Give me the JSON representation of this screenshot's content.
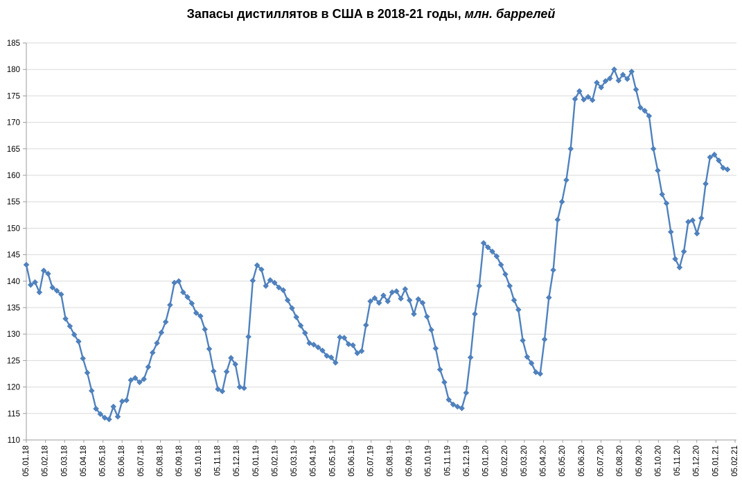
{
  "title": {
    "main": "Запасы дистиллятов в США в 2018-21 годы,",
    "suffix": " млн. баррелей"
  },
  "chart_data": {
    "type": "line",
    "title": "Запасы дистиллятов в США в 2018-21 годы, млн. баррелей",
    "xlabel": "",
    "ylabel": "",
    "x_unit": "week",
    "x_range": [
      "05.01.18",
      "05.02.21"
    ],
    "ylim": [
      110,
      185
    ],
    "ytick_step": 5,
    "grid": "horizontal",
    "legend": "none",
    "marker": "diamond",
    "line_color": "#4F81BD",
    "grid_color": "#D9D9D9",
    "axis_color": "#9B9B9B",
    "text_color": "#000000",
    "background": "#FFFFFF",
    "x_tick_labels": [
      "05.01.18",
      "05.02.18",
      "05.03.18",
      "05.04.18",
      "05.05.18",
      "05.06.18",
      "05.07.18",
      "05.08.18",
      "05.09.18",
      "05.10.18",
      "05.11.18",
      "05.12.18",
      "05.01.19",
      "05.02.19",
      "05.03.19",
      "05.04.19",
      "05.05.19",
      "05.06.19",
      "05.07.19",
      "05.08.19",
      "05.09.19",
      "05.10.19",
      "05.11.19",
      "05.12.19",
      "05.01.20",
      "05.02.20",
      "05.03.20",
      "05.04.20",
      "05.05.20",
      "05.06.20",
      "05.07.20",
      "05.08.20",
      "05.09.20",
      "05.10.20",
      "05.11.20",
      "05.12.20",
      "05.01.21",
      "05.02.21"
    ],
    "series": [
      {
        "name": "Запасы дистиллятов в США, млн. баррелей",
        "values": [
          143.1,
          139.3,
          139.8,
          137.9,
          142.0,
          141.4,
          138.8,
          138.2,
          137.5,
          132.9,
          131.5,
          129.9,
          128.6,
          125.4,
          122.7,
          119.3,
          115.9,
          114.9,
          114.2,
          113.9,
          116.3,
          114.4,
          117.3,
          117.5,
          121.3,
          121.7,
          120.9,
          121.5,
          123.8,
          126.5,
          128.3,
          130.3,
          132.3,
          135.5,
          139.7,
          140.0,
          137.9,
          137.0,
          135.8,
          134.0,
          133.4,
          130.9,
          127.2,
          123.0,
          119.6,
          119.2,
          122.9,
          125.5,
          124.3,
          120.0,
          119.8,
          129.5,
          140.1,
          143.0,
          142.2,
          139.1,
          140.2,
          139.7,
          138.8,
          138.3,
          136.4,
          134.9,
          133.2,
          131.6,
          130.2,
          128.3,
          128.0,
          127.5,
          126.9,
          125.9,
          125.6,
          124.6,
          129.4,
          129.3,
          128.1,
          127.9,
          126.4,
          126.8,
          131.7,
          136.2,
          136.8,
          135.9,
          137.3,
          136.2,
          137.9,
          138.1,
          136.7,
          138.5,
          136.4,
          133.8,
          136.6,
          135.9,
          133.3,
          130.8,
          127.3,
          123.3,
          120.9,
          117.6,
          116.7,
          116.3,
          116.0,
          118.9,
          125.6,
          133.8,
          139.1,
          147.2,
          146.4,
          145.6,
          144.7,
          143.1,
          141.3,
          139.1,
          136.4,
          134.6,
          128.8,
          125.7,
          124.5,
          122.8,
          122.5,
          129.0,
          136.9,
          142.1,
          151.6,
          155.0,
          159.1,
          165.0,
          174.4,
          175.9,
          174.3,
          174.8,
          174.2,
          177.5,
          176.6,
          177.8,
          178.3,
          180.0,
          177.9,
          179.0,
          178.2,
          179.6,
          176.2,
          172.8,
          172.2,
          171.2,
          165.0,
          160.9,
          156.4,
          154.7,
          149.3,
          144.2,
          142.6,
          145.6,
          151.2,
          151.5,
          149.0,
          151.9,
          158.4,
          163.4,
          163.9,
          162.8,
          161.4,
          161.1
        ]
      }
    ]
  }
}
